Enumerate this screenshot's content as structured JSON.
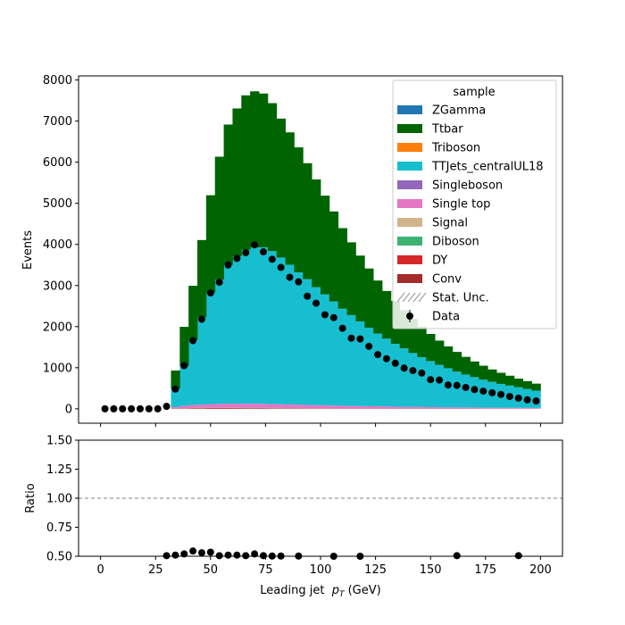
{
  "chart_data": [
    {
      "type": "bar",
      "stacked": true,
      "histtype": "step-filled",
      "xlabel": "Leading jet  pT (GeV)",
      "xlabel_prefix": "Leading jet  ",
      "xlabel_symbol": "p",
      "xlabel_sub": "T",
      "xlabel_unit": " (GeV)",
      "ylabel": "Events",
      "xlim": [
        -10,
        210
      ],
      "ylim": [
        -350,
        8100
      ],
      "xticks": [
        0,
        25,
        50,
        75,
        100,
        125,
        150,
        175,
        200
      ],
      "yticks": [
        0,
        1000,
        2000,
        3000,
        4000,
        5000,
        6000,
        7000,
        8000
      ],
      "grid": false,
      "bin_edges": [
        0,
        4,
        8,
        12,
        16,
        20,
        24,
        28,
        32,
        36,
        40,
        44,
        48,
        52,
        56,
        60,
        64,
        68,
        72,
        76,
        80,
        84,
        88,
        92,
        96,
        100,
        104,
        108,
        112,
        116,
        120,
        124,
        128,
        132,
        136,
        140,
        144,
        148,
        152,
        156,
        160,
        164,
        168,
        172,
        176,
        180,
        184,
        188,
        192,
        196,
        200
      ],
      "legend": {
        "title": "sample",
        "position": "top-right",
        "entries": [
          {
            "label": "ZGamma",
            "color": "#1f77b4",
            "kind": "patch"
          },
          {
            "label": "Ttbar",
            "color": "#006400",
            "kind": "patch"
          },
          {
            "label": "Triboson",
            "color": "#ff7f0e",
            "kind": "patch"
          },
          {
            "label": "TTJets_centralUL18",
            "color": "#17becf",
            "kind": "patch"
          },
          {
            "label": "Singleboson",
            "color": "#9467bd",
            "kind": "patch"
          },
          {
            "label": "Single top",
            "color": "#e377c2",
            "kind": "patch"
          },
          {
            "label": "Signal",
            "color": "#d2b48c",
            "kind": "patch"
          },
          {
            "label": "Diboson",
            "color": "#3cb371",
            "kind": "patch"
          },
          {
            "label": "DY",
            "color": "#d62728",
            "kind": "patch"
          },
          {
            "label": "Conv",
            "color": "#a52a2a",
            "kind": "patch"
          },
          {
            "label": "Stat. Unc.",
            "color": "#888888",
            "kind": "hatch"
          },
          {
            "label": "Data",
            "color": "#000000",
            "kind": "errorbar"
          }
        ]
      },
      "series": [
        {
          "name": "Conv",
          "color": "#a52a2a",
          "values": [
            0,
            0,
            0,
            0,
            0,
            0,
            0,
            0,
            3,
            5,
            6,
            6,
            7,
            7,
            7,
            7,
            6,
            6,
            6,
            5,
            5,
            5,
            5,
            4,
            4,
            4,
            4,
            3,
            3,
            3,
            3,
            3,
            3,
            2,
            2,
            2,
            2,
            2,
            2,
            2,
            2,
            2,
            2,
            1,
            1,
            1,
            1,
            1,
            1,
            1
          ]
        },
        {
          "name": "DY",
          "color": "#d62728",
          "values": [
            0,
            0,
            0,
            0,
            0,
            0,
            0,
            0,
            5,
            8,
            10,
            11,
            12,
            12,
            12,
            11,
            11,
            11,
            10,
            10,
            9,
            9,
            8,
            8,
            7,
            7,
            7,
            6,
            6,
            6,
            5,
            5,
            5,
            4,
            4,
            4,
            4,
            3,
            3,
            3,
            3,
            3,
            3,
            2,
            2,
            2,
            2,
            2,
            2,
            2
          ]
        },
        {
          "name": "Diboson",
          "color": "#3cb371",
          "values": [
            0,
            0,
            0,
            0,
            0,
            0,
            0,
            0,
            1,
            2,
            2,
            3,
            3,
            3,
            3,
            3,
            3,
            3,
            3,
            3,
            3,
            2,
            2,
            2,
            2,
            2,
            2,
            2,
            2,
            2,
            2,
            2,
            1,
            1,
            1,
            1,
            1,
            1,
            1,
            1,
            1,
            1,
            1,
            1,
            1,
            1,
            1,
            1,
            1,
            1
          ]
        },
        {
          "name": "Signal",
          "color": "#d2b48c",
          "values": [
            0,
            0,
            0,
            0,
            0,
            0,
            0,
            0,
            1,
            2,
            2,
            3,
            3,
            3,
            3,
            3,
            3,
            3,
            3,
            3,
            3,
            3,
            3,
            2,
            2,
            2,
            2,
            2,
            2,
            2,
            2,
            2,
            2,
            2,
            2,
            2,
            2,
            1,
            1,
            1,
            1,
            1,
            1,
            1,
            1,
            1,
            1,
            1,
            1,
            1
          ]
        },
        {
          "name": "Single top",
          "color": "#e377c2",
          "values": [
            0,
            0,
            0,
            0,
            0,
            0,
            0,
            0,
            30,
            55,
            70,
            80,
            88,
            94,
            98,
            100,
            100,
            98,
            95,
            92,
            88,
            84,
            80,
            76,
            72,
            68,
            64,
            60,
            56,
            53,
            50,
            47,
            44,
            41,
            39,
            37,
            35,
            33,
            31,
            29,
            27,
            26,
            24,
            23,
            22,
            21,
            20,
            19,
            18,
            17
          ]
        },
        {
          "name": "Singleboson",
          "color": "#9467bd",
          "values": [
            0,
            0,
            0,
            0,
            0,
            0,
            0,
            0,
            2,
            3,
            4,
            4,
            4,
            4,
            4,
            4,
            4,
            4,
            4,
            4,
            3,
            3,
            3,
            3,
            3,
            3,
            3,
            3,
            2,
            2,
            2,
            2,
            2,
            2,
            2,
            2,
            2,
            2,
            2,
            2,
            1,
            1,
            1,
            1,
            1,
            1,
            1,
            1,
            1,
            1
          ]
        },
        {
          "name": "TTJets_centralUL18",
          "color": "#17becf",
          "values": [
            0,
            0,
            0,
            0,
            0,
            0,
            0,
            0,
            450,
            970,
            1580,
            2120,
            2710,
            3020,
            3380,
            3580,
            3740,
            3800,
            3810,
            3720,
            3570,
            3400,
            3220,
            3060,
            2870,
            2700,
            2530,
            2360,
            2210,
            2060,
            1910,
            1770,
            1650,
            1530,
            1420,
            1310,
            1210,
            1120,
            1030,
            950,
            870,
            800,
            740,
            680,
            630,
            580,
            540,
            500,
            460,
            420
          ]
        },
        {
          "name": "Triboson",
          "color": "#ff7f0e",
          "values": [
            0,
            0,
            0,
            0,
            0,
            0,
            0,
            0,
            0,
            0,
            0,
            0,
            0,
            0,
            0,
            0,
            0,
            0,
            0,
            0,
            0,
            0,
            0,
            0,
            0,
            0,
            0,
            0,
            0,
            0,
            0,
            0,
            0,
            0,
            0,
            0,
            0,
            0,
            0,
            0,
            0,
            0,
            0,
            0,
            0,
            0,
            0,
            0,
            0,
            0
          ]
        },
        {
          "name": "Ttbar",
          "color": "#006400",
          "values": [
            0,
            0,
            0,
            0,
            0,
            0,
            0,
            0,
            440,
            950,
            1320,
            1880,
            2370,
            2990,
            3410,
            3600,
            3760,
            3800,
            3740,
            3600,
            3380,
            3220,
            3040,
            2820,
            2620,
            2400,
            2190,
            1960,
            1770,
            1600,
            1440,
            1290,
            1160,
            1040,
            930,
            830,
            740,
            660,
            590,
            530,
            480,
            430,
            380,
            340,
            300,
            270,
            240,
            210,
            190,
            170
          ]
        },
        {
          "name": "ZGamma",
          "color": "#1f77b4",
          "values": [
            0,
            0,
            0,
            0,
            0,
            0,
            0,
            0,
            0,
            0,
            0,
            0,
            0,
            0,
            0,
            0,
            0,
            0,
            0,
            0,
            0,
            0,
            0,
            0,
            0,
            0,
            0,
            0,
            0,
            0,
            0,
            0,
            0,
            0,
            0,
            0,
            0,
            0,
            0,
            0,
            0,
            0,
            0,
            0,
            0,
            0,
            0,
            0,
            0,
            0
          ]
        }
      ],
      "data": {
        "name": "Data",
        "x": [
          2,
          6,
          10,
          14,
          18,
          22,
          26,
          30,
          34,
          38,
          42,
          46,
          50,
          54,
          58,
          62,
          66,
          70,
          74,
          78,
          82,
          86,
          90,
          94,
          98,
          102,
          106,
          110,
          114,
          118,
          122,
          126,
          130,
          134,
          138,
          142,
          146,
          150,
          154,
          158,
          162,
          166,
          170,
          174,
          178,
          182,
          186,
          190,
          194,
          198
        ],
        "y": [
          0,
          0,
          0,
          0,
          0,
          0,
          0,
          60,
          480,
          1050,
          1660,
          2180,
          2820,
          3080,
          3500,
          3660,
          3800,
          3990,
          3820,
          3640,
          3440,
          3200,
          3090,
          2740,
          2570,
          2290,
          2220,
          1960,
          1720,
          1700,
          1520,
          1320,
          1220,
          1110,
          990,
          930,
          870,
          710,
          700,
          580,
          570,
          520,
          470,
          430,
          390,
          350,
          300,
          260,
          220,
          190
        ]
      }
    },
    {
      "type": "scatter",
      "panel": "ratio",
      "ylabel": "Ratio",
      "xlim": [
        -10,
        210
      ],
      "ylim": [
        0.5,
        1.5
      ],
      "yticks": [
        0.5,
        0.75,
        1.0,
        1.25,
        1.5
      ],
      "ytick_labels": [
        "0.50",
        "0.75",
        "1.00",
        "1.25",
        "1.50"
      ],
      "xticks": [
        0,
        25,
        50,
        75,
        100,
        125,
        150,
        175,
        200
      ],
      "reference_line": 1.0,
      "points": {
        "x": [
          30,
          34,
          38,
          42,
          46,
          50,
          54,
          58,
          62,
          66,
          70,
          74,
          78,
          82,
          90,
          106,
          118,
          162,
          190
        ],
        "y": [
          0.505,
          0.51,
          0.52,
          0.545,
          0.53,
          0.535,
          0.505,
          0.51,
          0.51,
          0.505,
          0.52,
          0.505,
          0.502,
          0.502,
          0.502,
          0.5,
          0.5,
          0.505,
          0.505
        ]
      }
    }
  ]
}
